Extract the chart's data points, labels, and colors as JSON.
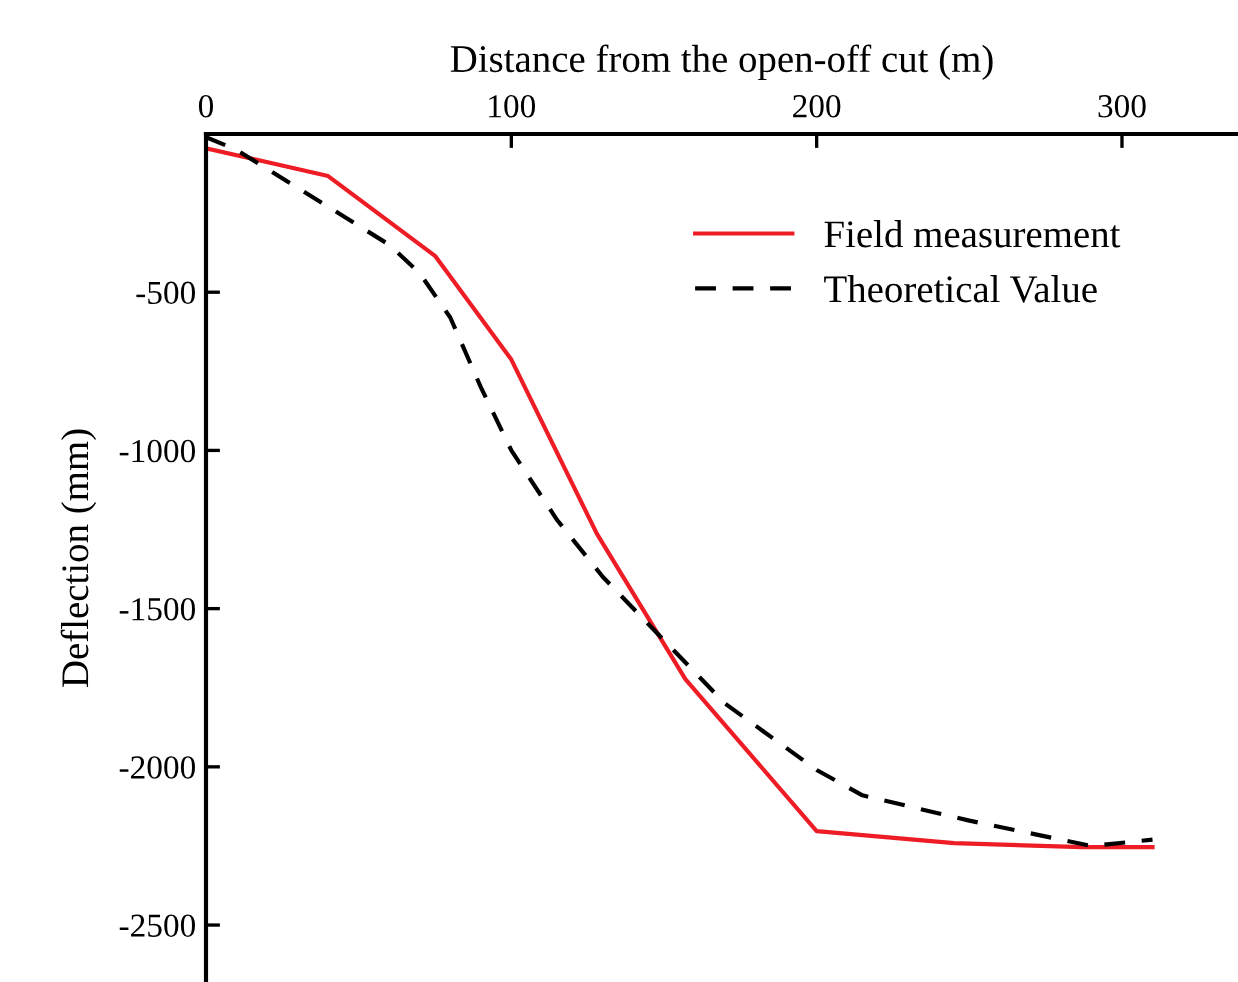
{
  "chart_data": {
    "type": "line",
    "xlabel": "Distance from the open-off cut (m)",
    "ylabel": "Deflection (mm)",
    "xlim": [
      0,
      338
    ],
    "xticks": [
      0,
      100,
      200,
      300
    ],
    "ylim": [
      -2680,
      0
    ],
    "yticks": [
      -500,
      -1000,
      -1500,
      -2000,
      -2500
    ],
    "grid": false,
    "legend": "top right",
    "series": [
      {
        "name": "Field measurement",
        "color": "#ee1c25",
        "line_style": "solid",
        "x": [
          0,
          40,
          75,
          100,
          128,
          157,
          200,
          245,
          287,
          310
        ],
        "values": [
          -45,
          -133,
          -385,
          -713,
          -1263,
          -1723,
          -2203,
          -2241,
          -2254,
          -2254
        ]
      },
      {
        "name": "Theoretical Value",
        "color": "#000000",
        "line_style": "dashed",
        "x": [
          0,
          10,
          40,
          60,
          70,
          80,
          90,
          100,
          115,
          130,
          150,
          170,
          200,
          215,
          250,
          290,
          310
        ],
        "values": [
          -10,
          -50,
          -230,
          -350,
          -440,
          -580,
          -800,
          -1000,
          -1220,
          -1400,
          -1600,
          -1800,
          -2010,
          -2090,
          -2170,
          -2250,
          -2230
        ]
      }
    ]
  }
}
